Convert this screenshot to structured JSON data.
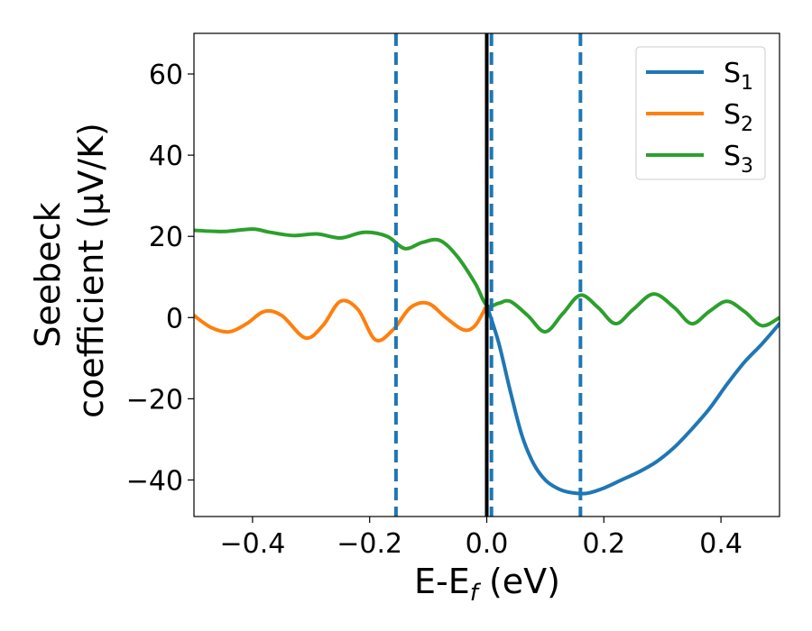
{
  "chart_data": {
    "type": "line",
    "xlabel": {
      "main": "E-E",
      "sub": "f",
      "suffix": " (eV)"
    },
    "ylabel": {
      "line1": "Seebeck",
      "line2": "coefficient  (μV/K)"
    },
    "xlim": [
      -0.5,
      0.5
    ],
    "ylim": [
      -49,
      70
    ],
    "x_ticks": [
      -0.4,
      -0.2,
      0.0,
      0.2,
      0.4
    ],
    "x_tick_labels": [
      "−0.4",
      "−0.2",
      "0.0",
      "0.2",
      "0.4"
    ],
    "y_ticks": [
      -40,
      -20,
      0,
      20,
      40,
      60
    ],
    "y_tick_labels": [
      "−40",
      "−20",
      "0",
      "20",
      "40",
      "60"
    ],
    "grid": false,
    "legend_position": "top-right",
    "colors": {
      "s1": "#1f77b4",
      "s2": "#ff7f0e",
      "s3": "#2ca02c",
      "fermi_line": "#000000",
      "dashed": "#1f77b4"
    },
    "vertical_lines": [
      {
        "x": 0.0,
        "style": "solid",
        "color": "#000000"
      },
      {
        "x": -0.155,
        "style": "dashed",
        "color": "#1f77b4"
      },
      {
        "x": 0.008,
        "style": "dashed",
        "color": "#1f77b4"
      },
      {
        "x": 0.16,
        "style": "dashed",
        "color": "#1f77b4"
      }
    ],
    "series": [
      {
        "key": "s3",
        "name_main": "S",
        "name_sub": "3",
        "color": "#2ca02c",
        "x": [
          -0.5,
          -0.45,
          -0.4,
          -0.37,
          -0.33,
          -0.29,
          -0.25,
          -0.21,
          -0.17,
          -0.14,
          -0.11,
          -0.08,
          -0.05,
          -0.02,
          0.0,
          0.02,
          0.04,
          0.07,
          0.1,
          0.13,
          0.16,
          0.19,
          0.22,
          0.25,
          0.285,
          0.32,
          0.35,
          0.38,
          0.41,
          0.44,
          0.47,
          0.5
        ],
        "y": [
          21.5,
          21.2,
          21.8,
          21.0,
          20.2,
          20.6,
          19.6,
          21.0,
          20.0,
          17.0,
          18.5,
          19.0,
          15.0,
          8.5,
          3.0,
          3.5,
          4.0,
          0.5,
          -3.5,
          1.0,
          5.5,
          2.5,
          -1.5,
          2.0,
          5.8,
          2.5,
          -1.5,
          1.5,
          4.0,
          1.5,
          -2.0,
          0.0
        ]
      },
      {
        "key": "s2",
        "name_main": "S",
        "name_sub": "2",
        "color": "#ff7f0e",
        "x": [
          -0.5,
          -0.47,
          -0.44,
          -0.41,
          -0.38,
          -0.35,
          -0.31,
          -0.28,
          -0.25,
          -0.22,
          -0.19,
          -0.16,
          -0.13,
          -0.1,
          -0.07,
          -0.04,
          -0.02,
          0.0
        ],
        "y": [
          0.5,
          -2.5,
          -3.5,
          -1.5,
          1.5,
          0.5,
          -5.0,
          -2.0,
          4.0,
          2.0,
          -5.5,
          -3.0,
          2.5,
          3.5,
          0.0,
          -3.0,
          -2.0,
          3.0
        ]
      },
      {
        "key": "s1",
        "name_main": "S",
        "name_sub": "1",
        "color": "#1f77b4",
        "x": [
          0.0,
          0.02,
          0.04,
          0.06,
          0.08,
          0.1,
          0.12,
          0.14,
          0.17,
          0.2,
          0.23,
          0.26,
          0.29,
          0.32,
          0.35,
          0.38,
          0.41,
          0.44,
          0.47,
          0.5
        ],
        "y": [
          3.0,
          -6.0,
          -18.0,
          -29.0,
          -36.0,
          -40.0,
          -42.0,
          -43.0,
          -43.3,
          -42.0,
          -40.0,
          -38.0,
          -35.5,
          -32.0,
          -27.5,
          -22.5,
          -16.5,
          -11.0,
          -6.5,
          -1.5
        ]
      }
    ],
    "legend_order": [
      "s1",
      "s2",
      "s3"
    ]
  }
}
